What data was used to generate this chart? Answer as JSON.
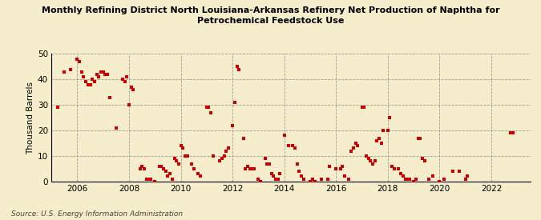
{
  "title_line1": "Monthly Refining District North Louisiana-Arkansas Refinery Net Production of Naphtha for",
  "title_line2": "Petrochemical Feedstock Use",
  "ylabel": "Thousand Barrels",
  "source": "Source: U.S. Energy Information Administration",
  "background_color": "#f5edcc",
  "marker_color": "#cc0000",
  "ylim": [
    0,
    50
  ],
  "yticks": [
    0,
    10,
    20,
    30,
    40,
    50
  ],
  "xticks": [
    2006,
    2008,
    2010,
    2012,
    2014,
    2016,
    2018,
    2020,
    2022
  ],
  "xlim": [
    2005.0,
    2023.5
  ],
  "data": [
    [
      2005.25,
      29
    ],
    [
      2005.5,
      43
    ],
    [
      2005.75,
      44
    ],
    [
      2006.0,
      48
    ],
    [
      2006.08,
      47
    ],
    [
      2006.17,
      43
    ],
    [
      2006.25,
      41
    ],
    [
      2006.33,
      39
    ],
    [
      2006.42,
      38
    ],
    [
      2006.5,
      38
    ],
    [
      2006.58,
      40
    ],
    [
      2006.67,
      39
    ],
    [
      2006.75,
      42
    ],
    [
      2006.83,
      41
    ],
    [
      2006.92,
      43
    ],
    [
      2007.0,
      43
    ],
    [
      2007.08,
      42
    ],
    [
      2007.17,
      42
    ],
    [
      2007.25,
      33
    ],
    [
      2007.5,
      21
    ],
    [
      2007.75,
      40
    ],
    [
      2007.83,
      39
    ],
    [
      2007.92,
      41
    ],
    [
      2008.0,
      30
    ],
    [
      2008.08,
      37
    ],
    [
      2008.17,
      36
    ],
    [
      2008.42,
      5
    ],
    [
      2008.5,
      6
    ],
    [
      2008.58,
      5
    ],
    [
      2008.67,
      1
    ],
    [
      2008.75,
      1
    ],
    [
      2008.83,
      1
    ],
    [
      2009.0,
      0
    ],
    [
      2009.17,
      6
    ],
    [
      2009.25,
      6
    ],
    [
      2009.33,
      5
    ],
    [
      2009.42,
      4
    ],
    [
      2009.5,
      2
    ],
    [
      2009.58,
      3
    ],
    [
      2009.67,
      1
    ],
    [
      2009.75,
      9
    ],
    [
      2009.83,
      8
    ],
    [
      2009.92,
      7
    ],
    [
      2010.0,
      14
    ],
    [
      2010.08,
      13
    ],
    [
      2010.17,
      10
    ],
    [
      2010.25,
      10
    ],
    [
      2010.42,
      7
    ],
    [
      2010.5,
      5
    ],
    [
      2010.67,
      3
    ],
    [
      2010.75,
      2
    ],
    [
      2011.0,
      29
    ],
    [
      2011.08,
      29
    ],
    [
      2011.17,
      27
    ],
    [
      2011.25,
      10
    ],
    [
      2011.5,
      8
    ],
    [
      2011.58,
      9
    ],
    [
      2011.67,
      10
    ],
    [
      2011.75,
      12
    ],
    [
      2011.83,
      13
    ],
    [
      2012.0,
      22
    ],
    [
      2012.08,
      31
    ],
    [
      2012.17,
      45
    ],
    [
      2012.25,
      44
    ],
    [
      2012.42,
      17
    ],
    [
      2012.5,
      5
    ],
    [
      2012.58,
      6
    ],
    [
      2012.67,
      5
    ],
    [
      2012.75,
      5
    ],
    [
      2012.83,
      5
    ],
    [
      2013.0,
      1
    ],
    [
      2013.08,
      0
    ],
    [
      2013.25,
      9
    ],
    [
      2013.33,
      7
    ],
    [
      2013.42,
      7
    ],
    [
      2013.5,
      3
    ],
    [
      2013.58,
      2
    ],
    [
      2013.67,
      1
    ],
    [
      2013.75,
      1
    ],
    [
      2013.83,
      3
    ],
    [
      2014.0,
      18
    ],
    [
      2014.17,
      14
    ],
    [
      2014.33,
      14
    ],
    [
      2014.42,
      13
    ],
    [
      2014.5,
      7
    ],
    [
      2014.58,
      4
    ],
    [
      2014.67,
      2
    ],
    [
      2014.75,
      1
    ],
    [
      2015.0,
      0
    ],
    [
      2015.08,
      1
    ],
    [
      2015.17,
      0
    ],
    [
      2015.42,
      1
    ],
    [
      2015.67,
      1
    ],
    [
      2015.75,
      6
    ],
    [
      2016.0,
      5
    ],
    [
      2016.17,
      5
    ],
    [
      2016.25,
      6
    ],
    [
      2016.33,
      2
    ],
    [
      2016.5,
      1
    ],
    [
      2016.58,
      12
    ],
    [
      2016.67,
      13
    ],
    [
      2016.75,
      15
    ],
    [
      2016.83,
      14
    ],
    [
      2017.0,
      29
    ],
    [
      2017.08,
      29
    ],
    [
      2017.17,
      10
    ],
    [
      2017.25,
      9
    ],
    [
      2017.33,
      8
    ],
    [
      2017.42,
      7
    ],
    [
      2017.5,
      8
    ],
    [
      2017.58,
      16
    ],
    [
      2017.67,
      17
    ],
    [
      2017.75,
      15
    ],
    [
      2017.83,
      20
    ],
    [
      2018.0,
      20
    ],
    [
      2018.08,
      25
    ],
    [
      2018.17,
      6
    ],
    [
      2018.25,
      5
    ],
    [
      2018.42,
      5
    ],
    [
      2018.5,
      3
    ],
    [
      2018.58,
      2
    ],
    [
      2018.67,
      1
    ],
    [
      2018.75,
      1
    ],
    [
      2018.83,
      1
    ],
    [
      2019.0,
      0
    ],
    [
      2019.08,
      1
    ],
    [
      2019.17,
      17
    ],
    [
      2019.25,
      17
    ],
    [
      2019.33,
      9
    ],
    [
      2019.42,
      8
    ],
    [
      2019.58,
      1
    ],
    [
      2019.75,
      2
    ],
    [
      2020.0,
      0
    ],
    [
      2020.17,
      1
    ],
    [
      2020.5,
      4
    ],
    [
      2020.75,
      4
    ],
    [
      2021.0,
      1
    ],
    [
      2021.08,
      2
    ],
    [
      2022.75,
      19
    ],
    [
      2022.83,
      19
    ]
  ]
}
